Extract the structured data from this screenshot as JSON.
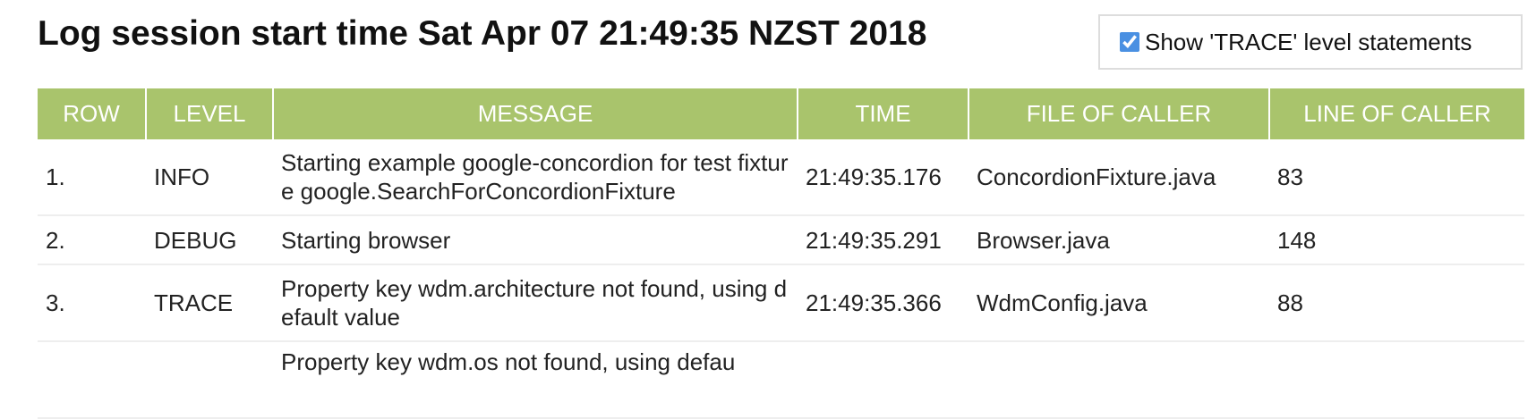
{
  "header": {
    "title": "Log session start time Sat Apr 07 21:49:35 NZST 2018",
    "checkbox_label": "Show 'TRACE' level statements",
    "checkbox_checked": true
  },
  "table": {
    "columns": [
      "ROW",
      "LEVEL",
      "MESSAGE",
      "TIME",
      "FILE OF CALLER",
      "LINE OF CALLER"
    ],
    "rows": [
      [
        "1.",
        "INFO",
        "Starting example google-concordion for test fixture google.SearchForConcordionFixture",
        "21:49:35.176",
        "ConcordionFixture.java",
        "83"
      ],
      [
        "2.",
        "DEBUG",
        "Starting browser",
        "21:49:35.291",
        "Browser.java",
        "148"
      ],
      [
        "3.",
        "TRACE",
        "Property key wdm.architecture not found, using default value",
        "21:49:35.366",
        "WdmConfig.java",
        "88"
      ]
    ],
    "partial_row_message": "Property key wdm.os not found, using defau"
  }
}
